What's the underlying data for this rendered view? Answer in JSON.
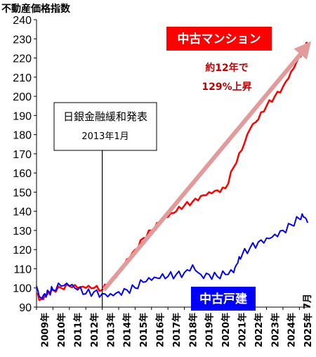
{
  "chart_data": {
    "type": "line",
    "ylabel": "不動産価格指数",
    "ylim": [
      90,
      240
    ],
    "yticks": [
      90,
      100,
      110,
      120,
      130,
      140,
      150,
      160,
      170,
      180,
      190,
      200,
      210,
      220,
      230,
      240
    ],
    "x_start_year": 2009,
    "x_end_year": 2025,
    "xtick_labels": [
      "2009年",
      "2010年",
      "2011年",
      "2012年",
      "2013年",
      "2014年",
      "2015年",
      "2016年",
      "2017年",
      "2018年",
      "2019年",
      "2020年",
      "2021年",
      "2022年",
      "2023年",
      "2024年",
      "2025年"
    ],
    "last_month_label": "7月",
    "grid": false,
    "series": [
      {
        "name": "中古マンション",
        "color": "#ff0000",
        "x": [
          2009.0,
          2009.25,
          2009.5,
          2009.75,
          2010.0,
          2010.5,
          2011.0,
          2011.5,
          2012.0,
          2012.5,
          2013.0,
          2013.5,
          2014.0,
          2014.5,
          2015.0,
          2015.5,
          2016.0,
          2016.5,
          2017.0,
          2017.5,
          2018.0,
          2018.5,
          2019.0,
          2019.5,
          2020.0,
          2020.5,
          2021.0,
          2021.5,
          2022.0,
          2022.5,
          2023.0,
          2023.5,
          2024.0,
          2024.5,
          2025.0,
          2025.25,
          2025.5
        ],
        "values": [
          97,
          94,
          96,
          98,
          99,
          100,
          101,
          100,
          100,
          100,
          99,
          104,
          108,
          115,
          120,
          126,
          130,
          134,
          137,
          140,
          143,
          145,
          148,
          150,
          151,
          152,
          163,
          172,
          183,
          188,
          195,
          200,
          205,
          213,
          221,
          224,
          228
        ]
      },
      {
        "name": "中古戸建",
        "color": "#0000ff",
        "x": [
          2009.0,
          2009.25,
          2009.5,
          2009.75,
          2010.0,
          2010.5,
          2011.0,
          2011.5,
          2012.0,
          2012.5,
          2013.0,
          2013.5,
          2014.0,
          2014.5,
          2015.0,
          2015.5,
          2016.0,
          2016.5,
          2017.0,
          2017.5,
          2018.0,
          2018.5,
          2019.0,
          2019.5,
          2020.0,
          2020.5,
          2021.0,
          2021.25,
          2021.5,
          2022.0,
          2022.5,
          2023.0,
          2023.5,
          2024.0,
          2024.5,
          2025.0,
          2025.25,
          2025.5
        ],
        "values": [
          101,
          95,
          97,
          98,
          99,
          101,
          101,
          99,
          97,
          98,
          97,
          97,
          98,
          99,
          100,
          103,
          104,
          105,
          106,
          107,
          108,
          112,
          107,
          107,
          106,
          107,
          108,
          113,
          117,
          121,
          124,
          126,
          128,
          130,
          133,
          136,
          137,
          134
        ]
      }
    ],
    "annotations": {
      "series_label_red": "中古マンション",
      "series_label_blue": "中古戸建",
      "arrow_note_line1": "約12年で",
      "arrow_note_line2": "129%上昇",
      "event_title": "日銀金融緩和発表",
      "event_date": "2013年1月",
      "event_x": 2013.0
    }
  }
}
